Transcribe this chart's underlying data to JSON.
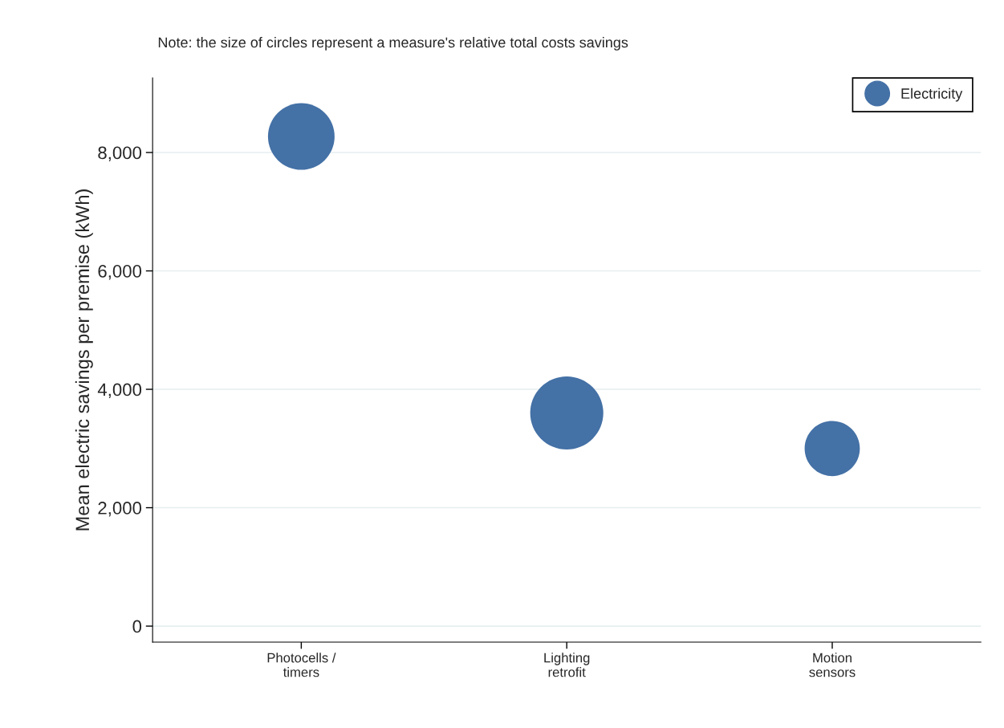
{
  "chart_data": {
    "type": "bubble",
    "ylabel": "Mean electric savings per premise (kWh)",
    "annotations": [
      "Note: the size of circles represent a measure's relative total costs savings"
    ],
    "categories": [
      "Photocells /\ntimers",
      "Lighting\nretrofit",
      "Motion\nsensors"
    ],
    "series": [
      {
        "name": "Electricity",
        "color": "#4471a6",
        "values": [
          8270,
          3600,
          3000
        ],
        "sizes": [
          0.83,
          1,
          0.57
        ]
      }
    ],
    "ylim": [
      -270,
      9260
    ],
    "yticks": [
      {
        "value": 0,
        "label": "0"
      },
      {
        "value": 2000,
        "label": "2,000"
      },
      {
        "value": 4000,
        "label": "4,000"
      },
      {
        "value": 6000,
        "label": "6,000"
      },
      {
        "value": 8000,
        "label": "8,000"
      }
    ],
    "grid": "y",
    "legend": "top right",
    "marker": "circle"
  }
}
